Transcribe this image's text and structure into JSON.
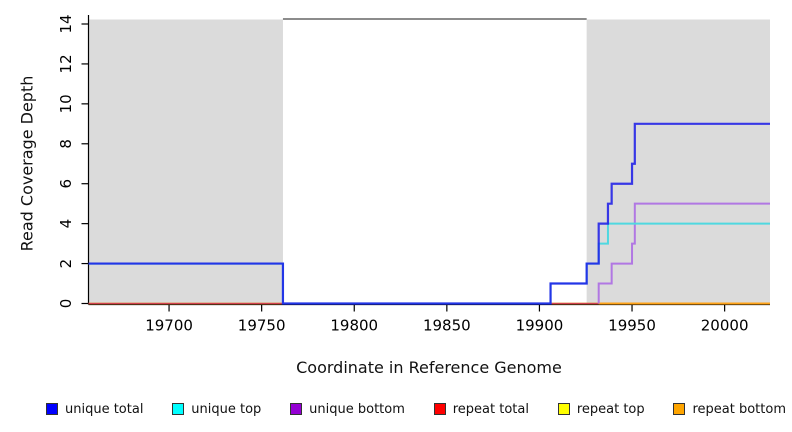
{
  "chart_data": {
    "type": "line",
    "subtype": "step-coverage-plot",
    "title": "",
    "xlabel": "Coordinate in Reference Genome",
    "ylabel": "Read Coverage Depth",
    "xlim": [
      19656.5,
      20024.5
    ],
    "ylim": [
      0,
      14
    ],
    "xticks": [
      19700,
      19750,
      19800,
      19850,
      19900,
      19950,
      20000
    ],
    "yticks": [
      0,
      2,
      4,
      6,
      8,
      10,
      12,
      14
    ],
    "grid": false,
    "legend_position": "bottom",
    "shaded_regions": [
      {
        "name": "left-repeat-region",
        "x0": 19656.5,
        "x1": 19761.5,
        "color": "#DBDBDB"
      },
      {
        "name": "right-repeat-region",
        "x0": 19925.5,
        "x1": 20024.5,
        "color": "#DBDBDB"
      }
    ],
    "boundary_line": {
      "x0": 19761.5,
      "x1": 19925.5,
      "y": 14.25,
      "color": "#8C8C8C"
    },
    "series": [
      {
        "name": "repeat top",
        "color": "#FFFF00",
        "width": 1.5,
        "opacity": 1,
        "steps": [
          [
            19656.5,
            0
          ]
        ],
        "end": 20024.5
      },
      {
        "name": "repeat total",
        "color": "#D2404E",
        "width": 1.5,
        "opacity": 1,
        "steps": [
          [
            19656.5,
            0
          ]
        ],
        "end": 20024.5
      },
      {
        "name": "repeat bottom",
        "color": "#FFA319",
        "width": 2,
        "opacity": 1,
        "steps": [
          [
            19932,
            0
          ]
        ],
        "end": 20024.5
      },
      {
        "name": "unique bottom",
        "color": "#B177E3",
        "width": 2,
        "opacity": 1,
        "steps": [
          [
            19932,
            0
          ],
          [
            19932,
            1
          ],
          [
            19939,
            2
          ],
          [
            19950,
            3
          ],
          [
            19951.5,
            5
          ]
        ],
        "end": 20024.5
      },
      {
        "name": "unique top",
        "color": "#4FD8E0",
        "width": 2,
        "opacity": 1,
        "steps": [
          [
            19656.5,
            2
          ],
          [
            19761.5,
            0
          ],
          [
            19906,
            1
          ],
          [
            19925.5,
            2
          ],
          [
            19932,
            3
          ],
          [
            19937,
            4
          ]
        ],
        "end": 20024.5
      },
      {
        "name": "unique total",
        "color": "#1A1AE8",
        "width": 2.2,
        "opacity": 0.85,
        "steps": [
          [
            19656.5,
            2
          ],
          [
            19761.5,
            0
          ],
          [
            19906,
            1
          ],
          [
            19925.5,
            2
          ],
          [
            19932,
            4
          ],
          [
            19937,
            5
          ],
          [
            19939,
            6
          ],
          [
            19950,
            7
          ],
          [
            19951.5,
            9
          ]
        ],
        "end": 20024.5
      }
    ]
  },
  "legend_items": [
    {
      "label": "unique total",
      "color": "#0000FF"
    },
    {
      "label": "unique top",
      "color": "#00FFFF"
    },
    {
      "label": "unique bottom",
      "color": "#9400D3"
    },
    {
      "label": "repeat total",
      "color": "#FF0000"
    },
    {
      "label": "repeat top",
      "color": "#FFFF00"
    },
    {
      "label": "repeat bottom",
      "color": "#FFA500"
    }
  ]
}
